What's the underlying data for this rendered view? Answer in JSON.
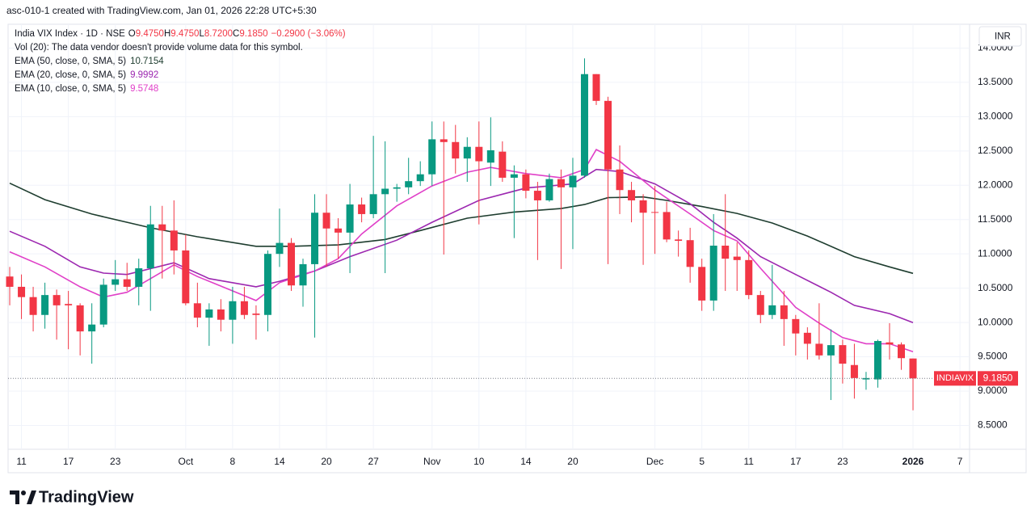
{
  "header": {
    "caption": "asc-010-1 created with TradingView.com, Jan 01, 2026 22:28 UTC+5:30",
    "currency": "INR",
    "brand": "TradingView"
  },
  "legend": {
    "symbol": "India VIX Index · 1D · NSE",
    "ohlc": [
      {
        "key": "O",
        "value": "9.4750"
      },
      {
        "key": "H",
        "value": "9.4750"
      },
      {
        "key": "L",
        "value": "8.7200"
      },
      {
        "key": "C",
        "value": "9.1850"
      }
    ],
    "change": "−0.2900 (−3.06%)",
    "volume_note": "Vol (20): The data vendor doesn't provide volume data for this symbol."
  },
  "chart_data": {
    "type": "candlestick",
    "up_color": "#089981",
    "down_color": "#f23645",
    "grid": true,
    "open": [
      10.67,
      10.52,
      10.37,
      10.11,
      10.4,
      10.27,
      10.25,
      9.87,
      9.97,
      10.55,
      10.63,
      10.52,
      10.79,
      11.43,
      11.34,
      11.05,
      10.28,
      10.07,
      10.19,
      10.04,
      10.31,
      10.13,
      10.11,
      11.0,
      11.16,
      10.54,
      10.85,
      11.6,
      11.37,
      11.31,
      11.72,
      11.58,
      11.87,
      11.95,
      11.97,
      12.06,
      12.16,
      12.67,
      12.63,
      12.39,
      12.56,
      12.33,
      12.49,
      12.11,
      12.16,
      11.92,
      11.78,
      12.09,
      11.97,
      12.14,
      13.62,
      13.23,
      12.23,
      11.93,
      11.78,
      11.61,
      11.61,
      11.21,
      11.2,
      10.81,
      10.32,
      11.12,
      10.96,
      10.91,
      10.4,
      10.11,
      10.25,
      10.05,
      9.85,
      9.69,
      9.52,
      9.67,
      9.38,
      9.17,
      9.17,
      9.71,
      9.68,
      9.475
    ],
    "high": [
      10.81,
      10.7,
      10.52,
      10.58,
      10.48,
      10.46,
      10.28,
      10.28,
      10.64,
      10.91,
      10.87,
      10.93,
      11.7,
      11.7,
      11.78,
      11.28,
      10.58,
      10.28,
      10.34,
      10.52,
      10.52,
      10.25,
      11.05,
      11.66,
      11.23,
      10.93,
      11.87,
      11.87,
      11.52,
      12.02,
      11.82,
      12.72,
      12.64,
      12.02,
      12.4,
      12.35,
      12.93,
      12.93,
      12.88,
      12.7,
      12.93,
      12.99,
      12.64,
      12.29,
      12.23,
      12.05,
      12.17,
      12.23,
      12.4,
      13.85,
      13.62,
      13.29,
      12.58,
      12.05,
      11.87,
      11.99,
      11.76,
      11.34,
      11.38,
      10.93,
      11.58,
      11.87,
      11.17,
      11.05,
      10.46,
      10.84,
      10.46,
      10.11,
      9.93,
      10.28,
      9.9,
      9.75,
      9.69,
      9.28,
      9.75,
      9.99,
      9.71,
      9.475
    ],
    "low": [
      10.25,
      10.05,
      9.87,
      9.91,
      9.75,
      9.61,
      9.52,
      9.4,
      9.93,
      10.46,
      10.46,
      10.25,
      10.17,
      10.64,
      10.7,
      10.25,
      9.93,
      9.66,
      9.87,
      9.69,
      10.05,
      9.75,
      9.87,
      10.81,
      10.46,
      10.23,
      9.78,
      10.81,
      10.93,
      10.72,
      11.46,
      11.52,
      10.72,
      11.76,
      11.87,
      11.99,
      11.99,
      10.99,
      12.17,
      12.05,
      11.43,
      11.99,
      12.05,
      11.23,
      11.81,
      10.91,
      11.76,
      10.78,
      11.07,
      12.11,
      13.17,
      10.85,
      11.58,
      11.46,
      10.84,
      11.0,
      11.17,
      10.96,
      10.58,
      10.17,
      10.17,
      10.46,
      10.46,
      10.34,
      9.99,
      10.05,
      9.66,
      9.52,
      9.46,
      9.46,
      8.87,
      9.11,
      8.89,
      9.02,
      9.05,
      9.46,
      9.31,
      8.72
    ],
    "close": [
      10.52,
      10.37,
      10.11,
      10.4,
      10.25,
      10.25,
      9.87,
      9.97,
      10.55,
      10.63,
      10.52,
      10.79,
      11.43,
      11.34,
      11.05,
      10.28,
      10.07,
      10.19,
      10.04,
      10.31,
      10.11,
      10.11,
      11.0,
      11.16,
      10.54,
      10.85,
      11.6,
      11.37,
      11.31,
      11.72,
      11.58,
      11.87,
      11.95,
      11.97,
      12.06,
      12.16,
      12.67,
      12.63,
      12.39,
      12.56,
      12.35,
      12.51,
      12.11,
      12.16,
      11.92,
      11.78,
      12.09,
      11.97,
      12.14,
      13.62,
      13.23,
      12.23,
      11.93,
      11.78,
      11.6,
      11.6,
      11.21,
      11.19,
      10.81,
      10.32,
      11.12,
      10.93,
      10.91,
      10.4,
      10.11,
      10.25,
      10.05,
      9.84,
      9.69,
      9.52,
      9.67,
      9.4,
      9.19,
      9.19,
      9.73,
      9.68,
      9.48,
      9.185
    ],
    "last_price": {
      "symbol": "INDIAVIX",
      "label": "9.1850"
    },
    "series": [
      {
        "name": "EMA (50, close, 0, SMA, 5)",
        "color": "#1e3d2f",
        "x": [
          0,
          3,
          7,
          12,
          16,
          21,
          24,
          28,
          32,
          35,
          39,
          43,
          47,
          49,
          51,
          54,
          56,
          59,
          62,
          65,
          68,
          72,
          75,
          77
        ],
        "values": [
          12.03,
          11.79,
          11.58,
          11.38,
          11.25,
          11.11,
          11.11,
          11.13,
          11.21,
          11.34,
          11.52,
          11.61,
          11.66,
          11.72,
          11.82,
          11.83,
          11.78,
          11.69,
          11.59,
          11.45,
          11.26,
          10.96,
          10.81,
          10.7154
        ]
      },
      {
        "name": "EMA (20, close, 0, SMA, 5)",
        "color": "#9c27b0",
        "x": [
          0,
          3,
          6,
          8,
          10,
          14,
          17,
          21,
          23,
          26,
          29,
          33,
          36,
          40,
          44,
          48,
          50,
          52,
          55,
          58,
          60,
          62,
          64,
          67,
          70,
          72,
          75,
          77
        ],
        "values": [
          11.33,
          11.11,
          10.81,
          10.72,
          10.7,
          10.87,
          10.64,
          10.52,
          10.6,
          10.75,
          10.96,
          11.2,
          11.46,
          11.78,
          11.96,
          12.02,
          12.23,
          12.2,
          12.02,
          11.73,
          11.46,
          11.23,
          10.96,
          10.7,
          10.44,
          10.25,
          10.13,
          9.9992
        ]
      },
      {
        "name": "EMA (10, close, 0, SMA, 5)",
        "color": "#e040c8",
        "x": [
          0,
          3,
          6,
          8,
          10,
          12,
          14,
          16,
          19,
          21,
          23,
          26,
          28,
          30,
          33,
          36,
          39,
          41,
          44,
          47,
          49,
          50,
          52,
          55,
          58,
          60,
          62,
          64,
          67,
          69,
          71,
          73,
          75,
          77
        ],
        "values": [
          11.03,
          10.81,
          10.52,
          10.37,
          10.44,
          10.64,
          10.84,
          10.67,
          10.46,
          10.32,
          10.58,
          10.75,
          10.93,
          11.29,
          11.7,
          11.99,
          12.19,
          12.26,
          12.17,
          12.11,
          12.23,
          12.52,
          12.35,
          11.93,
          11.58,
          11.34,
          11.19,
          10.79,
          10.22,
          9.99,
          9.78,
          9.69,
          9.69,
          9.5748
        ]
      }
    ],
    "xlim": [
      -0.14,
      81.82
    ],
    "ylim": [
      8.152,
      14.347
    ],
    "xticks": [
      {
        "value": 1,
        "label": "11"
      },
      {
        "value": 5,
        "label": "17"
      },
      {
        "value": 9,
        "label": "23"
      },
      {
        "value": 15,
        "label": "Oct"
      },
      {
        "value": 19,
        "label": "8"
      },
      {
        "value": 23,
        "label": "14"
      },
      {
        "value": 27,
        "label": "20"
      },
      {
        "value": 31,
        "label": "27"
      },
      {
        "value": 36,
        "label": "Nov"
      },
      {
        "value": 40,
        "label": "10"
      },
      {
        "value": 44,
        "label": "14"
      },
      {
        "value": 48,
        "label": "20"
      },
      {
        "value": 55,
        "label": "Dec"
      },
      {
        "value": 59,
        "label": "5"
      },
      {
        "value": 63,
        "label": "11"
      },
      {
        "value": 67,
        "label": "17"
      },
      {
        "value": 71,
        "label": "23"
      },
      {
        "value": 77,
        "label": "2026"
      },
      {
        "value": 81,
        "label": "7"
      }
    ],
    "yticks": [
      {
        "value": 8.5,
        "label": "8.5000"
      },
      {
        "value": 9,
        "label": "9.0000"
      },
      {
        "value": 9.5,
        "label": "9.5000"
      },
      {
        "value": 10,
        "label": "10.0000"
      },
      {
        "value": 10.5,
        "label": "10.5000"
      },
      {
        "value": 11,
        "label": "11.0000"
      },
      {
        "value": 11.5,
        "label": "11.5000"
      },
      {
        "value": 12,
        "label": "12.0000"
      },
      {
        "value": 12.5,
        "label": "12.5000"
      },
      {
        "value": 13,
        "label": "13.0000"
      },
      {
        "value": 13.5,
        "label": "13.5000"
      },
      {
        "value": 14,
        "label": "14.0000"
      }
    ]
  }
}
